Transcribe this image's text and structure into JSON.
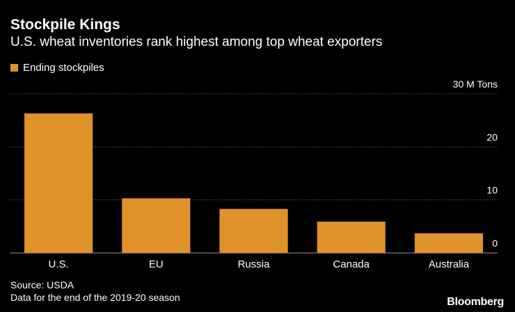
{
  "header": {
    "title": "Stockpile Kings",
    "subtitle": "U.S. wheat inventories rank highest among top wheat exporters"
  },
  "legend": {
    "label": "Ending stockpiles"
  },
  "footer": {
    "source": "Source: USDA",
    "note": "Data for the end of the 2019-20 season",
    "brand": "Bloomberg"
  },
  "colors": {
    "background": "#000000",
    "bar": "#e0922a",
    "gridline": "#5a5a5a",
    "text": "#ffffff"
  },
  "chart_data": {
    "type": "bar",
    "title": "Stockpile Kings",
    "subtitle": "U.S. wheat inventories rank highest among top wheat exporters",
    "categories": [
      "U.S.",
      "EU",
      "Russia",
      "Canada",
      "Australia"
    ],
    "series": [
      {
        "name": "Ending stockpiles",
        "values": [
          26.3,
          10.3,
          8.3,
          5.9,
          3.7
        ]
      }
    ],
    "ylabel": "",
    "xlabel": "",
    "y_unit_label": "30 M Tons",
    "ylim": [
      0,
      30
    ],
    "yticks": [
      {
        "value": 0,
        "label": "0"
      },
      {
        "value": 10,
        "label": "10"
      },
      {
        "value": 20,
        "label": "20"
      },
      {
        "value": 30,
        "label": "30 M Tons"
      }
    ],
    "grid": true,
    "legend_position": "top-left"
  }
}
